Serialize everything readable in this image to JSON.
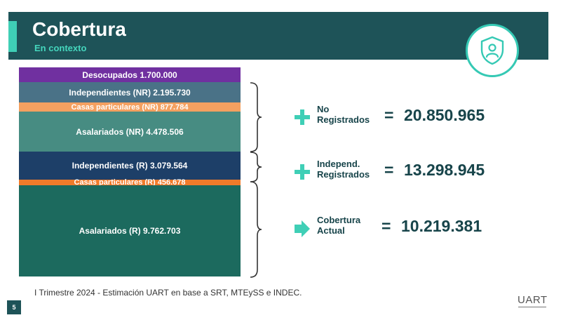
{
  "header": {
    "title": "Cobertura",
    "subtitle": "En contexto",
    "icon": "shield-person-icon",
    "bg_color": "#1e5358",
    "accent_color": "#3fcfb6"
  },
  "stack": [
    {
      "label": "Desocupados 1.700.000",
      "color": "#7030a0"
    },
    {
      "label": "Independientes (NR) 2.195.730",
      "color": "#4a7287"
    },
    {
      "label": "Casas particulares (NR) 877.784",
      "color": "#f4a060"
    },
    {
      "label": "Asalariados (NR) 4.478.506",
      "color": "#478c82"
    },
    {
      "label": "Independientes (R) 3.079.564",
      "color": "#1d3f68"
    },
    {
      "label": "Casas particulares (R) 456.678",
      "color": "#f07a2a"
    },
    {
      "label": "Asalariados (R) 9.762.703",
      "color": "#1c6a5e"
    }
  ],
  "summary": [
    {
      "icon": "plus-icon",
      "label_line1": "No",
      "label_line2": "Registrados",
      "equals": "=",
      "value": "20.850.965"
    },
    {
      "icon": "plus-icon",
      "label_line1": "Independ.",
      "label_line2": "Registrados",
      "equals": "=",
      "value": "13.298.945"
    },
    {
      "icon": "arrow-right-icon",
      "label_line1": "Cobertura",
      "label_line2": "Actual",
      "equals": "=",
      "value": "10.219.381"
    }
  ],
  "footer": {
    "note": "I Trimestre 2024 - Estimación UART en base a SRT, MTEySS e INDEC.",
    "page_number": "5",
    "logo": "UART"
  }
}
